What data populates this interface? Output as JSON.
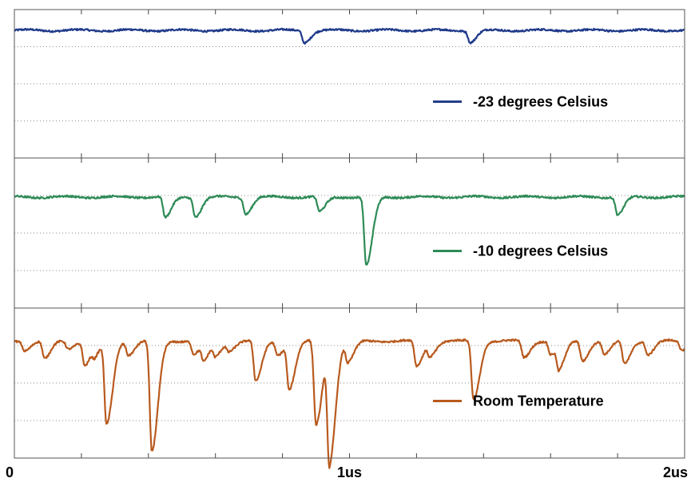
{
  "chart_data": {
    "type": "line",
    "layout": "three stacked panels sharing one x axis",
    "x_axis": {
      "xlim": [
        0,
        2
      ],
      "unit": "us",
      "tick_labels": [
        "0",
        "1us",
        "2us"
      ],
      "minor_ticks_per_label_interval": 5
    },
    "grid": "dotted horizontal gridlines",
    "legend_placement": "lower-right of each panel",
    "panels": [
      {
        "name": "-23 degrees Celsius",
        "color": "#1f3a8a",
        "ylim": [
          0,
          1
        ],
        "baseline": 0.86,
        "dips": [
          {
            "x": 0.865,
            "depth": 0.08
          },
          {
            "x": 1.36,
            "depth": 0.08
          }
        ]
      },
      {
        "name": "-10 degrees Celsius",
        "color": "#2e8b57",
        "ylim": [
          0,
          1
        ],
        "baseline": 0.74,
        "dips": [
          {
            "x": 0.45,
            "depth": 0.14
          },
          {
            "x": 0.54,
            "depth": 0.13
          },
          {
            "x": 0.69,
            "depth": 0.11
          },
          {
            "x": 0.91,
            "depth": 0.1
          },
          {
            "x": 1.05,
            "depth": 0.46
          },
          {
            "x": 1.8,
            "depth": 0.12
          }
        ]
      },
      {
        "name": "Room Temperature",
        "color": "#b85a1e",
        "ylim": [
          0,
          1
        ],
        "baseline": 0.78,
        "dips": [
          {
            "x": 0.03,
            "depth": 0.06
          },
          {
            "x": 0.09,
            "depth": 0.12
          },
          {
            "x": 0.16,
            "depth": 0.05
          },
          {
            "x": 0.21,
            "depth": 0.16
          },
          {
            "x": 0.24,
            "depth": 0.08
          },
          {
            "x": 0.275,
            "depth": 0.55
          },
          {
            "x": 0.34,
            "depth": 0.09
          },
          {
            "x": 0.41,
            "depth": 0.74
          },
          {
            "x": 0.535,
            "depth": 0.09
          },
          {
            "x": 0.565,
            "depth": 0.12
          },
          {
            "x": 0.6,
            "depth": 0.09
          },
          {
            "x": 0.64,
            "depth": 0.06
          },
          {
            "x": 0.72,
            "depth": 0.27
          },
          {
            "x": 0.785,
            "depth": 0.09
          },
          {
            "x": 0.82,
            "depth": 0.31
          },
          {
            "x": 0.9,
            "depth": 0.56
          },
          {
            "x": 0.94,
            "depth": 0.79
          },
          {
            "x": 0.995,
            "depth": 0.14
          },
          {
            "x": 1.2,
            "depth": 0.17
          },
          {
            "x": 1.24,
            "depth": 0.09
          },
          {
            "x": 1.37,
            "depth": 0.39
          },
          {
            "x": 1.52,
            "depth": 0.11
          },
          {
            "x": 1.6,
            "depth": 0.09
          },
          {
            "x": 1.625,
            "depth": 0.17
          },
          {
            "x": 1.695,
            "depth": 0.13
          },
          {
            "x": 1.76,
            "depth": 0.09
          },
          {
            "x": 1.82,
            "depth": 0.15
          },
          {
            "x": 1.89,
            "depth": 0.09
          },
          {
            "x": 1.99,
            "depth": 0.06
          }
        ]
      }
    ]
  }
}
